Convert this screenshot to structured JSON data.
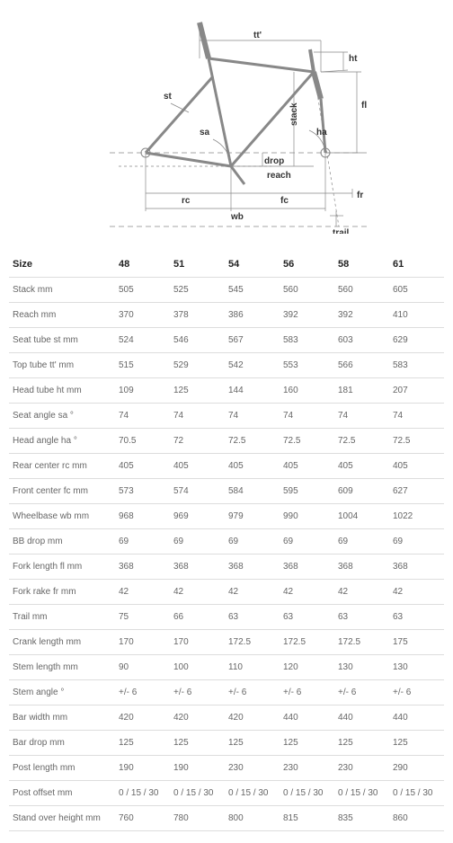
{
  "diagram": {
    "stroke": "#888888",
    "stroke_width": 1,
    "label_fontsize": 10,
    "labels": {
      "tt": "tt'",
      "ht": "ht",
      "fl": "fl",
      "ha": "ha",
      "stack": "stack",
      "st": "st",
      "sa": "sa",
      "drop": "drop",
      "reach": "reach",
      "rc": "rc",
      "fc": "fc",
      "fr": "fr",
      "wb": "wb",
      "trail": "trail"
    }
  },
  "table": {
    "header_label": "Size",
    "sizes": [
      "48",
      "51",
      "54",
      "56",
      "58",
      "61"
    ],
    "rows": [
      {
        "label": "Stack mm",
        "v": [
          "505",
          "525",
          "545",
          "560",
          "560",
          "605"
        ]
      },
      {
        "label": "Reach mm",
        "v": [
          "370",
          "378",
          "386",
          "392",
          "392",
          "410"
        ]
      },
      {
        "label": "Seat tube st mm",
        "v": [
          "524",
          "546",
          "567",
          "583",
          "603",
          "629"
        ]
      },
      {
        "label": "Top tube tt' mm",
        "v": [
          "515",
          "529",
          "542",
          "553",
          "566",
          "583"
        ]
      },
      {
        "label": "Head tube ht mm",
        "v": [
          "109",
          "125",
          "144",
          "160",
          "181",
          "207"
        ]
      },
      {
        "label": "Seat angle sa °",
        "v": [
          "74",
          "74",
          "74",
          "74",
          "74",
          "74"
        ]
      },
      {
        "label": "Head angle ha °",
        "v": [
          "70.5",
          "72",
          "72.5",
          "72.5",
          "72.5",
          "72.5"
        ]
      },
      {
        "label": "Rear center rc mm",
        "v": [
          "405",
          "405",
          "405",
          "405",
          "405",
          "405"
        ]
      },
      {
        "label": "Front center fc mm",
        "v": [
          "573",
          "574",
          "584",
          "595",
          "609",
          "627"
        ]
      },
      {
        "label": "Wheelbase wb mm",
        "v": [
          "968",
          "969",
          "979",
          "990",
          "1004",
          "1022"
        ]
      },
      {
        "label": "BB drop mm",
        "v": [
          "69",
          "69",
          "69",
          "69",
          "69",
          "69"
        ]
      },
      {
        "label": "Fork length fl mm",
        "v": [
          "368",
          "368",
          "368",
          "368",
          "368",
          "368"
        ]
      },
      {
        "label": "Fork rake fr mm",
        "v": [
          "42",
          "42",
          "42",
          "42",
          "42",
          "42"
        ]
      },
      {
        "label": "Trail mm",
        "v": [
          "75",
          "66",
          "63",
          "63",
          "63",
          "63"
        ]
      },
      {
        "label": "Crank length mm",
        "v": [
          "170",
          "170",
          "172.5",
          "172.5",
          "172.5",
          "175"
        ]
      },
      {
        "label": "Stem length mm",
        "v": [
          "90",
          "100",
          "110",
          "120",
          "130",
          "130"
        ]
      },
      {
        "label": "Stem angle °",
        "v": [
          "+/- 6",
          "+/- 6",
          "+/- 6",
          "+/- 6",
          "+/- 6",
          "+/- 6"
        ]
      },
      {
        "label": "Bar width mm",
        "v": [
          "420",
          "420",
          "420",
          "440",
          "440",
          "440"
        ]
      },
      {
        "label": "Bar drop mm",
        "v": [
          "125",
          "125",
          "125",
          "125",
          "125",
          "125"
        ]
      },
      {
        "label": "Post length mm",
        "v": [
          "190",
          "190",
          "230",
          "230",
          "230",
          "290"
        ]
      },
      {
        "label": "Post offset mm",
        "v": [
          "0 / 15 / 30",
          "0 / 15 / 30",
          "0 / 15 / 30",
          "0 / 15 / 30",
          "0 / 15 / 30",
          "0 / 15 / 30"
        ]
      },
      {
        "label": "Stand over height mm",
        "v": [
          "760",
          "780",
          "800",
          "815",
          "835",
          "860"
        ]
      }
    ]
  }
}
